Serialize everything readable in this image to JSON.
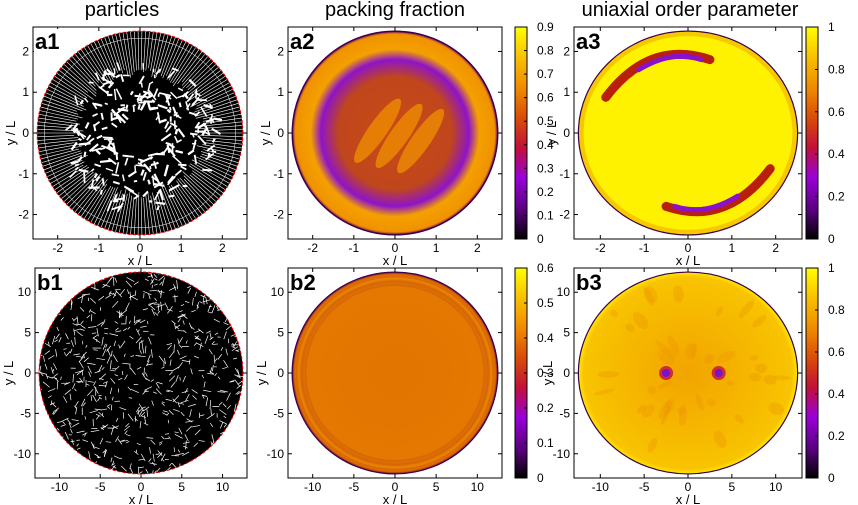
{
  "column_titles": [
    "particles",
    "packing fraction",
    "uniaxial order parameter"
  ],
  "colors": {
    "colormap": [
      "#000000",
      "#5a007f",
      "#9a00d8",
      "#c2103a",
      "#d94c08",
      "#ef8a00",
      "#f9c100",
      "#ffff00"
    ],
    "particle_bg": "#000000",
    "particle_fg": "#ffffff",
    "boundary": "#ff0000",
    "frame": "#000000"
  },
  "chart_data": [
    {
      "panel": "a1",
      "type": "scatter",
      "title": "particles",
      "xlabel": "x / L",
      "ylabel": "y / L",
      "xlim": [
        -2.6,
        2.6
      ],
      "ylim": [
        -2.6,
        2.6
      ],
      "xticks": [
        "-2",
        "-1",
        "0",
        "1",
        "2"
      ],
      "yticks": [
        "-2",
        "-1",
        "0",
        "1",
        "2"
      ],
      "cavity_radius": 2.5
    },
    {
      "panel": "a2",
      "type": "heatmap",
      "title": "packing fraction",
      "xlabel": "x / L",
      "ylabel": "y / L",
      "xlim": [
        -2.6,
        2.6
      ],
      "ylim": [
        -2.6,
        2.6
      ],
      "xticks": [
        "-2",
        "-1",
        "0",
        "1",
        "2"
      ],
      "yticks": [
        "-2",
        "-1",
        "0",
        "1",
        "2"
      ],
      "colorbar_range": [
        0,
        0.9
      ],
      "colorbar_ticks": [
        "0",
        "0.1",
        "0.2",
        "0.3",
        "0.4",
        "0.5",
        "0.6",
        "0.7",
        "0.8",
        "0.9"
      ],
      "cavity_radius": 2.5
    },
    {
      "panel": "a3",
      "type": "heatmap",
      "title": "uniaxial order parameter",
      "xlabel": "x / L",
      "ylabel": "y / L",
      "xlim": [
        -2.6,
        2.6
      ],
      "ylim": [
        -2.6,
        2.6
      ],
      "xticks": [
        "-2",
        "-1",
        "0",
        "1",
        "2"
      ],
      "yticks": [
        "-2",
        "-1",
        "0",
        "1",
        "2"
      ],
      "colorbar_range": [
        0,
        1
      ],
      "colorbar_ticks": [
        "0",
        "0.2",
        "0.4",
        "0.6",
        "0.8",
        "1"
      ],
      "defects": [
        {
          "x": -0.5,
          "y": 1.7
        },
        {
          "x": 0.8,
          "y": -1.7
        }
      ],
      "cavity_radius": 2.5
    },
    {
      "panel": "b1",
      "type": "scatter",
      "xlabel": "x / L",
      "ylabel": "y / L",
      "xlim": [
        -13,
        13
      ],
      "ylim": [
        -13,
        13
      ],
      "xticks": [
        "-10",
        "-5",
        "0",
        "5",
        "10"
      ],
      "yticks": [
        "-10",
        "-5",
        "0",
        "5",
        "10"
      ],
      "cavity_radius": 12.5
    },
    {
      "panel": "b2",
      "type": "heatmap",
      "xlabel": "x / L",
      "ylabel": "y / L",
      "xlim": [
        -13,
        13
      ],
      "ylim": [
        -13,
        13
      ],
      "xticks": [
        "-10",
        "-5",
        "0",
        "5",
        "10"
      ],
      "yticks": [
        "-10",
        "-5",
        "0",
        "5",
        "10"
      ],
      "colorbar_range": [
        0,
        0.6
      ],
      "colorbar_ticks": [
        "0",
        "0.1",
        "0.2",
        "0.3",
        "0.4",
        "0.5",
        "0.6"
      ],
      "cavity_radius": 12.5
    },
    {
      "panel": "b3",
      "type": "heatmap",
      "xlabel": "x / L",
      "ylabel": "y / L",
      "xlim": [
        -13,
        13
      ],
      "ylim": [
        -13,
        13
      ],
      "xticks": [
        "-10",
        "-5",
        "0",
        "5",
        "10"
      ],
      "yticks": [
        "-10",
        "-5",
        "0",
        "5",
        "10"
      ],
      "colorbar_range": [
        0,
        1
      ],
      "colorbar_ticks": [
        "0",
        "0.2",
        "0.4",
        "0.6",
        "0.8",
        "1"
      ],
      "defects": [
        {
          "x": -2.5,
          "y": 0
        },
        {
          "x": 3.5,
          "y": 0
        }
      ],
      "cavity_radius": 12.5
    }
  ]
}
